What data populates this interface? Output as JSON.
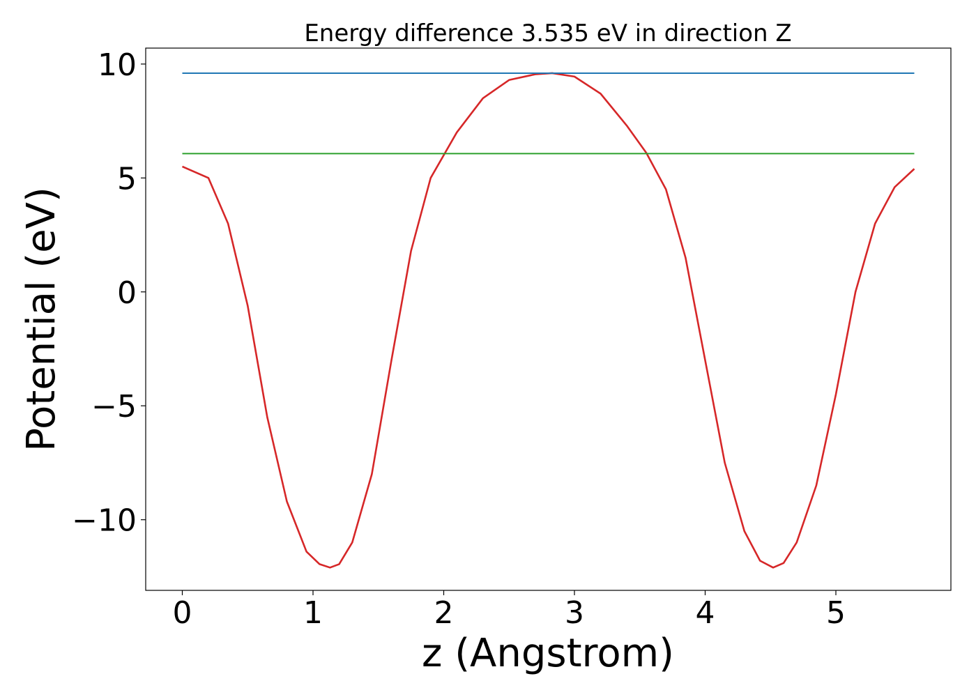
{
  "chart_data": {
    "type": "line",
    "title": "Energy difference 3.535 eV in direction Z",
    "xlabel": "z (Angstrom)",
    "ylabel": "Potential (eV)",
    "xlim": [
      -0.28,
      5.88
    ],
    "ylim": [
      -13.1,
      10.7
    ],
    "xticks": [
      0,
      1,
      2,
      3,
      4,
      5
    ],
    "xtick_labels": [
      "0",
      "1",
      "2",
      "3",
      "4",
      "5"
    ],
    "yticks": [
      10,
      5,
      0,
      -5,
      -10
    ],
    "ytick_labels": [
      "10",
      "5",
      "0",
      "−5",
      "−10"
    ],
    "grid": false,
    "series": [
      {
        "role": "potential",
        "color": "#d62728",
        "x": [
          0,
          0.2,
          0.35,
          0.5,
          0.65,
          0.8,
          0.95,
          1.05,
          1.13,
          1.2,
          1.3,
          1.45,
          1.6,
          1.75,
          1.9,
          2.0,
          2.1,
          2.3,
          2.5,
          2.7,
          2.83,
          3.0,
          3.2,
          3.4,
          3.55,
          3.7,
          3.85,
          4.0,
          4.15,
          4.3,
          4.42,
          4.52,
          4.6,
          4.7,
          4.85,
          5.0,
          5.15,
          5.3,
          5.45,
          5.6
        ],
        "y": [
          5.5,
          5.0,
          3.0,
          -0.6,
          -5.5,
          -9.2,
          -11.4,
          -11.95,
          -12.1,
          -11.95,
          -11.0,
          -8.0,
          -3.0,
          1.8,
          5.0,
          6.0,
          7.0,
          8.5,
          9.3,
          9.55,
          9.6,
          9.45,
          8.7,
          7.3,
          6.1,
          4.5,
          1.5,
          -3.0,
          -7.5,
          -10.5,
          -11.8,
          -12.1,
          -11.9,
          -11.0,
          -8.5,
          -4.5,
          0.0,
          3.0,
          4.6,
          5.4
        ]
      },
      {
        "role": "level",
        "color": "#1f77b4",
        "x": [
          0,
          5.6
        ],
        "y": [
          9.6,
          9.6
        ]
      },
      {
        "role": "level",
        "color": "#2ca02c",
        "x": [
          0,
          5.6
        ],
        "y": [
          6.07,
          6.07
        ]
      }
    ]
  }
}
